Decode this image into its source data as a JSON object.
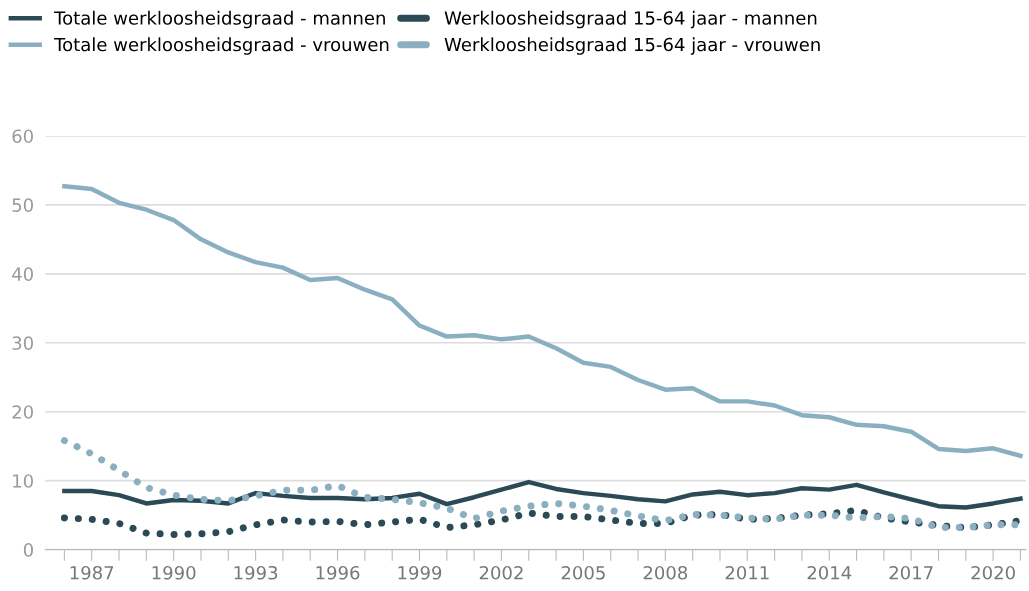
{
  "chart_data": {
    "type": "line",
    "x": [
      1986,
      1987,
      1988,
      1989,
      1990,
      1991,
      1992,
      1993,
      1994,
      1995,
      1996,
      1997,
      1998,
      1999,
      2000,
      2001,
      2002,
      2003,
      2004,
      2005,
      2006,
      2007,
      2008,
      2009,
      2010,
      2011,
      2012,
      2013,
      2014,
      2015,
      2016,
      2017,
      2018,
      2019,
      2020,
      2021
    ],
    "series": [
      {
        "name": "Totale werkloosheidsgraad - mannen",
        "color": "#2b4a56",
        "line_style": "solid",
        "values": [
          8.5,
          8.5,
          7.9,
          6.7,
          7.2,
          7.1,
          6.7,
          8.2,
          7.8,
          7.5,
          7.5,
          7.3,
          7.5,
          8.1,
          6.6,
          7.6,
          8.7,
          9.8,
          8.8,
          8.2,
          7.8,
          7.3,
          7.0,
          8.0,
          8.4,
          7.9,
          8.2,
          8.9,
          8.7,
          9.4,
          8.3,
          7.3,
          6.3,
          6.1,
          6.7,
          7.4
        ]
      },
      {
        "name": "Werkloosheidsgraad 15-64 jaar - mannen",
        "color": "#2b4a56",
        "line_style": "dotted",
        "values": [
          4.6,
          4.4,
          3.8,
          2.4,
          2.2,
          2.3,
          2.6,
          3.6,
          4.3,
          4.0,
          4.1,
          3.6,
          4.0,
          4.4,
          3.2,
          3.6,
          4.3,
          5.3,
          4.8,
          4.8,
          4.3,
          3.8,
          3.8,
          5.0,
          5.1,
          4.4,
          4.5,
          5.0,
          5.2,
          5.7,
          4.6,
          4.0,
          3.5,
          3.2,
          3.6,
          4.2
        ]
      },
      {
        "name": "Totale werkloosheidsgraad - vrouwen",
        "color": "#8aafc0",
        "line_style": "solid",
        "values": [
          52.7,
          52.3,
          50.3,
          49.3,
          47.8,
          45.0,
          43.1,
          41.7,
          40.9,
          39.1,
          39.4,
          37.7,
          36.3,
          32.5,
          30.9,
          31.1,
          30.5,
          30.9,
          29.2,
          27.1,
          26.5,
          24.6,
          23.2,
          23.4,
          21.5,
          21.5,
          20.9,
          19.5,
          19.2,
          18.1,
          17.9,
          17.1,
          14.6,
          14.3,
          14.7,
          13.6
        ]
      },
      {
        "name": "Werkloosheidsgraad 15-64 jaar - vrouwen",
        "color": "#8aafc0",
        "line_style": "dotted",
        "values": [
          15.8,
          13.9,
          11.5,
          9.0,
          7.9,
          7.3,
          7.1,
          7.8,
          8.6,
          8.6,
          9.3,
          7.6,
          7.3,
          6.8,
          6.0,
          4.5,
          5.6,
          6.3,
          6.7,
          6.3,
          5.7,
          4.9,
          4.2,
          5.1,
          5.0,
          4.6,
          4.4,
          5.0,
          5.0,
          4.6,
          4.8,
          4.5,
          3.2,
          3.2,
          3.6,
          3.6
        ]
      }
    ],
    "xlim": [
      1985.3,
      2021.2
    ],
    "xticks": [
      {
        "value": 1986,
        "label": null
      },
      1987,
      {
        "value": 1988,
        "label": null
      },
      {
        "value": 1989,
        "label": null
      },
      1990,
      {
        "value": 1991,
        "label": null
      },
      {
        "value": 1992,
        "label": null
      },
      1993,
      {
        "value": 1994,
        "label": null
      },
      {
        "value": 1995,
        "label": null
      },
      1996,
      {
        "value": 1997,
        "label": null
      },
      {
        "value": 1998,
        "label": null
      },
      1999,
      {
        "value": 2000,
        "label": null
      },
      {
        "value": 2001,
        "label": null
      },
      2002,
      {
        "value": 2003,
        "label": null
      },
      {
        "value": 2004,
        "label": null
      },
      2005,
      {
        "value": 2006,
        "label": null
      },
      {
        "value": 2007,
        "label": null
      },
      2008,
      {
        "value": 2009,
        "label": null
      },
      {
        "value": 2010,
        "label": null
      },
      2011,
      {
        "value": 2012,
        "label": null
      },
      {
        "value": 2013,
        "label": null
      },
      2014,
      {
        "value": 2015,
        "label": null
      },
      {
        "value": 2016,
        "label": null
      },
      2017,
      {
        "value": 2018,
        "label": null
      },
      {
        "value": 2019,
        "label": null
      },
      2020,
      {
        "value": 2021,
        "label": null
      }
    ],
    "ylim": [
      0,
      60
    ],
    "yticks": [
      0,
      10,
      20,
      30,
      40,
      50,
      60
    ],
    "grid": "y",
    "legend": "top left"
  }
}
